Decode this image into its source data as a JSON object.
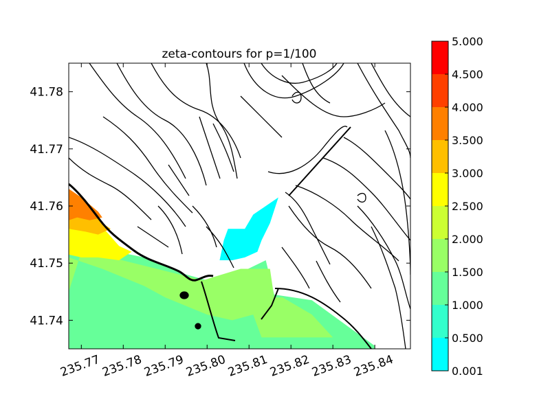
{
  "chart_data": {
    "type": "contour",
    "title": "zeta-contours for p=1/100",
    "xlabel": "",
    "ylabel": "",
    "xlim": [
      235.767,
      235.8485
    ],
    "ylim": [
      41.735,
      41.785
    ],
    "x_ticks": [
      {
        "value": 235.77,
        "label": "235.77"
      },
      {
        "value": 235.78,
        "label": "235.78"
      },
      {
        "value": 235.79,
        "label": "235.79"
      },
      {
        "value": 235.8,
        "label": "235.80"
      },
      {
        "value": 235.81,
        "label": "235.81"
      },
      {
        "value": 235.82,
        "label": "235.82"
      },
      {
        "value": 235.83,
        "label": "235.83"
      },
      {
        "value": 235.84,
        "label": "235.84"
      }
    ],
    "y_ticks": [
      {
        "value": 41.74,
        "label": "41.74"
      },
      {
        "value": 41.75,
        "label": "41.75"
      },
      {
        "value": 41.76,
        "label": "41.76"
      },
      {
        "value": 41.77,
        "label": "41.77"
      },
      {
        "value": 41.78,
        "label": "41.78"
      }
    ],
    "colorbar": {
      "levels": [
        {
          "label": "0.001",
          "color": "#00ffff"
        },
        {
          "label": "0.500",
          "color": "#33ffcc"
        },
        {
          "label": "1.000",
          "color": "#66ff99"
        },
        {
          "label": "1.500",
          "color": "#99ff66"
        },
        {
          "label": "2.000",
          "color": "#ccff33"
        },
        {
          "label": "2.500",
          "color": "#ffff00"
        },
        {
          "label": "3.000",
          "color": "#ffbf00"
        },
        {
          "label": "3.500",
          "color": "#ff8000"
        },
        {
          "label": "4.000",
          "color": "#ff4000"
        },
        {
          "label": "4.500",
          "color": "#ff0000"
        },
        {
          "label": "5.000",
          "color": null
        }
      ]
    },
    "filled_regions": [
      {
        "level_color": "#66ff99",
        "description_points": [
          [
            235.767,
            41.735
          ],
          [
            235.767,
            41.753
          ],
          [
            235.775,
            41.7525
          ],
          [
            235.785,
            41.751
          ],
          [
            235.795,
            41.748
          ],
          [
            235.8,
            41.747
          ],
          [
            235.807,
            41.748
          ],
          [
            235.814,
            41.7505
          ],
          [
            235.816,
            41.7445
          ],
          [
            235.825,
            41.7435
          ],
          [
            235.84,
            41.7355
          ],
          [
            235.84,
            41.735
          ]
        ]
      },
      {
        "level_color": "#99ff66",
        "description_points": [
          [
            235.767,
            41.745
          ],
          [
            235.767,
            41.751
          ],
          [
            235.775,
            41.749
          ],
          [
            235.785,
            41.746
          ],
          [
            235.79,
            41.744
          ],
          [
            235.8,
            41.741
          ],
          [
            235.806,
            41.74
          ],
          [
            235.811,
            41.741
          ],
          [
            235.813,
            41.737
          ],
          [
            235.83,
            41.737
          ],
          [
            235.825,
            41.741
          ],
          [
            235.818,
            41.744
          ],
          [
            235.816,
            41.744
          ],
          [
            235.815,
            41.749
          ],
          [
            235.808,
            41.749
          ],
          [
            235.799,
            41.747
          ],
          [
            235.788,
            41.749
          ],
          [
            235.777,
            41.751
          ],
          [
            235.77,
            41.752
          ]
        ]
      },
      {
        "level_color": "#ffff00",
        "description_points": [
          [
            235.767,
            41.7515
          ],
          [
            235.767,
            41.7575
          ],
          [
            235.772,
            41.757
          ],
          [
            235.776,
            41.7555
          ],
          [
            235.779,
            41.753
          ],
          [
            235.782,
            41.752
          ],
          [
            235.779,
            41.7505
          ],
          [
            235.774,
            41.751
          ],
          [
            235.77,
            41.751
          ]
        ]
      },
      {
        "level_color": "#ffbf00",
        "description_points": [
          [
            235.767,
            41.756
          ],
          [
            235.767,
            41.761
          ],
          [
            235.771,
            41.76
          ],
          [
            235.775,
            41.757
          ],
          [
            235.777,
            41.756
          ],
          [
            235.774,
            41.755
          ],
          [
            235.771,
            41.7555
          ]
        ]
      },
      {
        "level_color": "#ff8000",
        "description_points": [
          [
            235.767,
            41.7575
          ],
          [
            235.767,
            41.763
          ],
          [
            235.77,
            41.7615
          ],
          [
            235.774,
            41.759
          ],
          [
            235.775,
            41.758
          ],
          [
            235.772,
            41.7575
          ],
          [
            235.769,
            41.758
          ]
        ]
      },
      {
        "level_color": "#00ffff",
        "description_points": [
          [
            235.803,
            41.7505
          ],
          [
            235.804,
            41.754
          ],
          [
            235.805,
            41.756
          ],
          [
            235.809,
            41.756
          ],
          [
            235.811,
            41.7585
          ],
          [
            235.814,
            41.76
          ],
          [
            235.817,
            41.7615
          ],
          [
            235.815,
            41.757
          ],
          [
            235.813,
            41.754
          ],
          [
            235.812,
            41.752
          ],
          [
            235.809,
            41.751
          ],
          [
            235.806,
            41.7505
          ]
        ]
      }
    ],
    "contour_lines": "many black iso-contours (bathymetry/topography) across the domain; coastline drawn as thick black line"
  }
}
